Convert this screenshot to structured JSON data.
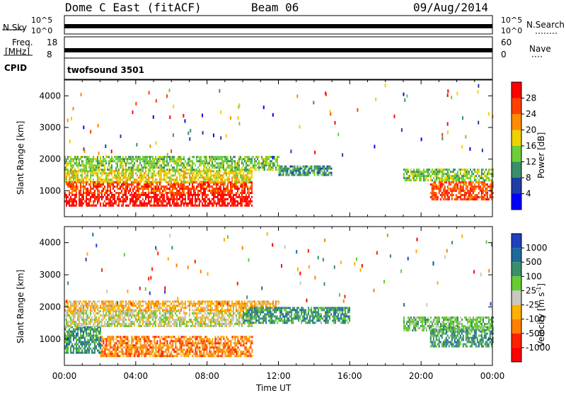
{
  "header": {
    "station": "Dome C East (fitACF)",
    "beam": "Beam 06",
    "date": "09/Aug/2014"
  },
  "status_panels": {
    "nsky_label": "N.Sky",
    "nsky_ticks": [
      "10^5",
      "10^0"
    ],
    "nsearch_label": "N.Search",
    "freq_label": "Freq.",
    "freq_unit": "[MHz]",
    "freq_ticks": [
      "18",
      "8"
    ],
    "nave_label": "Nave",
    "nave_ticks": [
      "60",
      "0"
    ],
    "cpid_label": "CPID",
    "cpid_value": "twofsound 3501"
  },
  "chart_data": [
    {
      "type": "heatmap",
      "name": "power-panel",
      "ylabel": "Slant Range [km]",
      "ylim": [
        180,
        4500
      ],
      "yticks": [
        1000,
        2000,
        3000,
        4000
      ],
      "xlim_hours": [
        0,
        24
      ],
      "colorbar_label": "Power [dB]",
      "colorbar_ticks": [
        "4",
        "8",
        "12",
        "16",
        "20",
        "24",
        "28"
      ],
      "colors": [
        "#0000ff",
        "#1e3ea6",
        "#3a8f6a",
        "#6ccf3a",
        "#f0d000",
        "#ff8c00",
        "#ff4000",
        "#ff0000"
      ],
      "regions": [
        {
          "t": [
            0,
            10.5
          ],
          "r": [
            500,
            900
          ],
          "level": 7
        },
        {
          "t": [
            0,
            10.5
          ],
          "r": [
            900,
            1300
          ],
          "level": 6
        },
        {
          "t": [
            0,
            10.5
          ],
          "r": [
            1300,
            1650
          ],
          "level": 4
        },
        {
          "t": [
            0,
            12
          ],
          "r": [
            1650,
            2100
          ],
          "level": 3
        },
        {
          "t": [
            12,
            15
          ],
          "r": [
            1500,
            1800
          ],
          "level": 2
        },
        {
          "t": [
            20.5,
            24
          ],
          "r": [
            700,
            1300
          ],
          "level": 6
        },
        {
          "t": [
            19,
            24
          ],
          "r": [
            1300,
            1700
          ],
          "level": 3
        }
      ]
    },
    {
      "type": "heatmap",
      "name": "velocity-panel",
      "ylabel": "Slant Range [km]",
      "ylim": [
        180,
        4500
      ],
      "yticks": [
        1000,
        2000,
        3000,
        4000
      ],
      "xlim_hours": [
        0,
        24
      ],
      "colorbar_label": "Velocity [m s-1]",
      "colorbar_ticks": [
        "1000",
        "500",
        "100",
        "25",
        "-25",
        "-100",
        "-500",
        "-1000"
      ],
      "colors": [
        "#2040c0",
        "#1e6a9a",
        "#3a8f6a",
        "#66cc33",
        "#c8c8c0",
        "#ffb000",
        "#ff8000",
        "#ff2000",
        "#ff0000"
      ],
      "regions": [
        {
          "t": [
            2,
            10.5
          ],
          "r": [
            500,
            1100
          ],
          "level": 6
        },
        {
          "t": [
            0,
            2
          ],
          "r": [
            600,
            1400
          ],
          "level": 2
        },
        {
          "t": [
            0,
            10.5
          ],
          "r": [
            1400,
            1900
          ],
          "level": 4
        },
        {
          "t": [
            0,
            12
          ],
          "r": [
            1900,
            2200
          ],
          "level": 5
        },
        {
          "t": [
            10,
            16
          ],
          "r": [
            1500,
            2000
          ],
          "level": 2
        },
        {
          "t": [
            20.5,
            24
          ],
          "r": [
            800,
            1400
          ],
          "level": 2
        },
        {
          "t": [
            19,
            24
          ],
          "r": [
            1300,
            1700
          ],
          "level": 3
        }
      ]
    }
  ],
  "x_axis": {
    "ticks": [
      "00:00",
      "04:00",
      "08:00",
      "12:00",
      "16:00",
      "20:00",
      "00:00"
    ],
    "label": "Time UT"
  }
}
